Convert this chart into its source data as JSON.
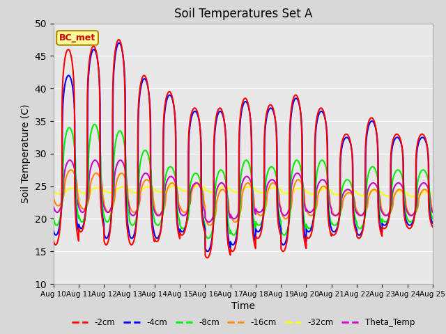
{
  "title": "Soil Temperatures Set A",
  "xlabel": "Time",
  "ylabel": "Soil Temperature (C)",
  "ylim": [
    10,
    50
  ],
  "yticks": [
    10,
    15,
    20,
    25,
    30,
    35,
    40,
    45,
    50
  ],
  "xtick_labels": [
    "Aug 10",
    "Aug 11",
    "Aug 12",
    "Aug 13",
    "Aug 14",
    "Aug 15",
    "Aug 16",
    "Aug 17",
    "Aug 18",
    "Aug 19",
    "Aug 20",
    "Aug 21",
    "Aug 22",
    "Aug 23",
    "Aug 24",
    "Aug 25"
  ],
  "line_colors": {
    "2cm": "#ff0000",
    "4cm": "#0000ff",
    "8cm": "#00ee00",
    "16cm": "#ff8800",
    "32cm": "#ffff00",
    "theta": "#cc00cc"
  },
  "legend_labels": [
    "-2cm",
    "-4cm",
    "-8cm",
    "-16cm",
    "-32cm",
    "Theta_Temp"
  ],
  "annotation_text": "BC_met",
  "annotation_color": "#cc0000",
  "annotation_bg": "#ffff99",
  "fig_bg": "#d8d8d8",
  "plot_bg": "#e8e8e8",
  "grid_color": "#ffffff"
}
